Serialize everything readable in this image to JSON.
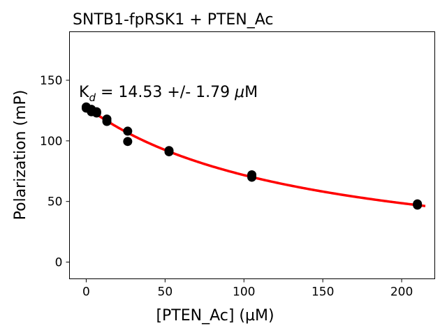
{
  "chart_data": {
    "type": "scatter",
    "title": "SNTB1-fpRSK1 + PTEN_Ac",
    "xlabel": "[PTEN_Ac] (µM)",
    "ylabel": "Polarization (mP)",
    "annotation": {
      "prefix": "K",
      "subscript": "d",
      "text": " = 14.53 +/- 1.79 ",
      "mu": "μ",
      "unit": "M"
    },
    "xlim": [
      -10.6,
      221
    ],
    "ylim": [
      -13.8,
      190
    ],
    "xticks": [
      0,
      50,
      100,
      150,
      200
    ],
    "yticks": [
      0,
      50,
      100,
      150
    ],
    "grid": false,
    "points_color": "#000000",
    "fit_color": "#ff0000",
    "points": [
      {
        "x": 0,
        "y": 128
      },
      {
        "x": 0,
        "y": 127
      },
      {
        "x": 3.3,
        "y": 126
      },
      {
        "x": 3.3,
        "y": 124
      },
      {
        "x": 6.6,
        "y": 124
      },
      {
        "x": 6.6,
        "y": 123
      },
      {
        "x": 13.1,
        "y": 118
      },
      {
        "x": 13.1,
        "y": 116
      },
      {
        "x": 26.3,
        "y": 108
      },
      {
        "x": 26.3,
        "y": 99.5
      },
      {
        "x": 52.5,
        "y": 92
      },
      {
        "x": 52.5,
        "y": 91
      },
      {
        "x": 105,
        "y": 72
      },
      {
        "x": 105,
        "y": 70
      },
      {
        "x": 210,
        "y": 48
      },
      {
        "x": 210,
        "y": 47
      }
    ],
    "fit": {
      "y0": 128,
      "A": 135,
      "K": 140,
      "x_range": [
        0,
        215
      ]
    }
  }
}
